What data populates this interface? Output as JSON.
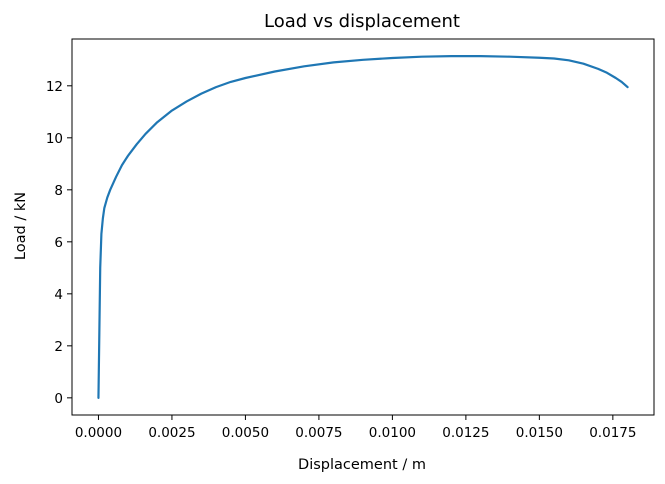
{
  "chart_data": {
    "type": "line",
    "title": "Load vs displacement",
    "xlabel": "Displacement / m",
    "ylabel": "Load / kN",
    "xlim": [
      -0.0009,
      0.0189
    ],
    "ylim": [
      -0.66,
      13.8
    ],
    "grid": false,
    "x_ticks": [
      0.0,
      0.0025,
      0.005,
      0.0075,
      0.01,
      0.0125,
      0.015,
      0.0175
    ],
    "x_tick_labels": [
      "0.0000",
      "0.0025",
      "0.0050",
      "0.0075",
      "0.0100",
      "0.0125",
      "0.0150",
      "0.0175"
    ],
    "y_ticks": [
      0,
      2,
      4,
      6,
      8,
      10,
      12
    ],
    "y_tick_labels": [
      "0",
      "2",
      "4",
      "6",
      "8",
      "10",
      "12"
    ],
    "series": [
      {
        "color": "#1f77b4",
        "x": [
          0.0,
          3e-05,
          6e-05,
          0.0001,
          0.00015,
          0.0002,
          0.0003,
          0.0004,
          0.0006,
          0.0008,
          0.001,
          0.0013,
          0.0016,
          0.002,
          0.0025,
          0.003,
          0.0035,
          0.004,
          0.0045,
          0.005,
          0.006,
          0.007,
          0.008,
          0.009,
          0.01,
          0.011,
          0.012,
          0.013,
          0.014,
          0.015,
          0.0155,
          0.016,
          0.0165,
          0.017,
          0.0173,
          0.0176,
          0.0178,
          0.018
        ],
        "y": [
          0.0,
          2.5,
          5.0,
          6.3,
          6.9,
          7.3,
          7.7,
          8.0,
          8.5,
          8.95,
          9.3,
          9.75,
          10.15,
          10.6,
          11.05,
          11.4,
          11.7,
          11.95,
          12.15,
          12.3,
          12.55,
          12.75,
          12.9,
          13.0,
          13.07,
          13.12,
          13.14,
          13.14,
          13.12,
          13.08,
          13.05,
          12.98,
          12.85,
          12.65,
          12.5,
          12.3,
          12.15,
          11.95
        ]
      }
    ]
  }
}
